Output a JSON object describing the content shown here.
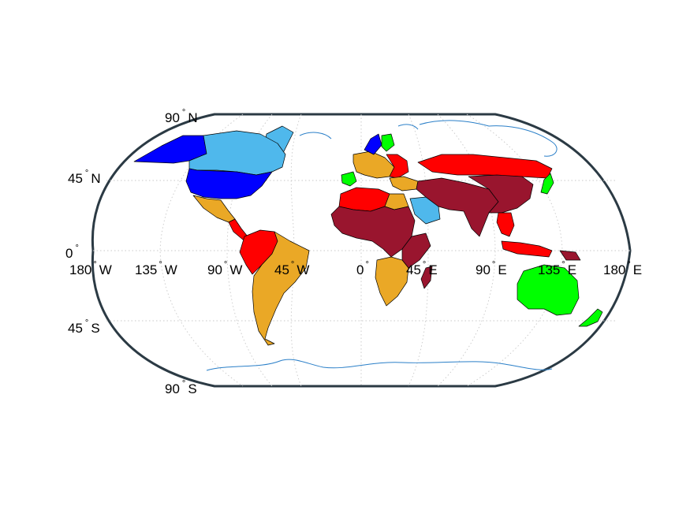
{
  "map": {
    "projection": "robinson",
    "graticule_step_deg": 45,
    "frame_color": "#2b3a44",
    "coastline_color": "#2a7fc8",
    "latitude_labels": [
      {
        "value": "90",
        "hemisphere": "N"
      },
      {
        "value": "45",
        "hemisphere": "N"
      },
      {
        "value": "0",
        "hemisphere": ""
      },
      {
        "value": "45",
        "hemisphere": "S"
      },
      {
        "value": "90",
        "hemisphere": "S"
      }
    ],
    "longitude_labels": [
      {
        "value": "180",
        "hemisphere": "W"
      },
      {
        "value": "135",
        "hemisphere": "W"
      },
      {
        "value": "90",
        "hemisphere": "W"
      },
      {
        "value": "45",
        "hemisphere": "W"
      },
      {
        "value": "0",
        "hemisphere": ""
      },
      {
        "value": "45",
        "hemisphere": "E"
      },
      {
        "value": "90",
        "hemisphere": "E"
      },
      {
        "value": "135",
        "hemisphere": "E"
      },
      {
        "value": "180",
        "hemisphere": "E"
      }
    ],
    "degree_symbol": "°",
    "category_colors": {
      "dark_blue": "#0000ff",
      "light_blue": "#4fb8ec",
      "orange": "#eaa826",
      "red": "#ff0000",
      "dark_red": "#99152e",
      "green": "#00ff00"
    },
    "regions": [
      {
        "name": "Canada",
        "category": "light_blue"
      },
      {
        "name": "Alaska",
        "category": "dark_blue"
      },
      {
        "name": "United States",
        "category": "dark_blue"
      },
      {
        "name": "Mexico",
        "category": "orange"
      },
      {
        "name": "Central America",
        "category": "red"
      },
      {
        "name": "Northern South America",
        "category": "red"
      },
      {
        "name": "Brazil and Southern South America",
        "category": "orange"
      },
      {
        "name": "Greenland",
        "category": "light_blue"
      },
      {
        "name": "Iberia",
        "category": "green"
      },
      {
        "name": "Western Europe",
        "category": "orange"
      },
      {
        "name": "Scandinavia",
        "category": "dark_blue"
      },
      {
        "name": "Finland",
        "category": "green"
      },
      {
        "name": "Eastern Europe",
        "category": "red"
      },
      {
        "name": "North Africa",
        "category": "red"
      },
      {
        "name": "West and Central Africa",
        "category": "dark_red"
      },
      {
        "name": "Egypt",
        "category": "orange"
      },
      {
        "name": "Arabia",
        "category": "light_blue"
      },
      {
        "name": "Middle East",
        "category": "orange"
      },
      {
        "name": "Southern Africa",
        "category": "orange"
      },
      {
        "name": "East Africa",
        "category": "dark_red"
      },
      {
        "name": "Madagascar",
        "category": "dark_red"
      },
      {
        "name": "Russia",
        "category": "red"
      },
      {
        "name": "Central and South Asia",
        "category": "dark_red"
      },
      {
        "name": "China",
        "category": "dark_red"
      },
      {
        "name": "Japan",
        "category": "green"
      },
      {
        "name": "Southeast Asia",
        "category": "red"
      },
      {
        "name": "Indonesia",
        "category": "red"
      },
      {
        "name": "Papua New Guinea",
        "category": "dark_red"
      },
      {
        "name": "Australia",
        "category": "green"
      },
      {
        "name": "New Zealand",
        "category": "green"
      }
    ]
  }
}
